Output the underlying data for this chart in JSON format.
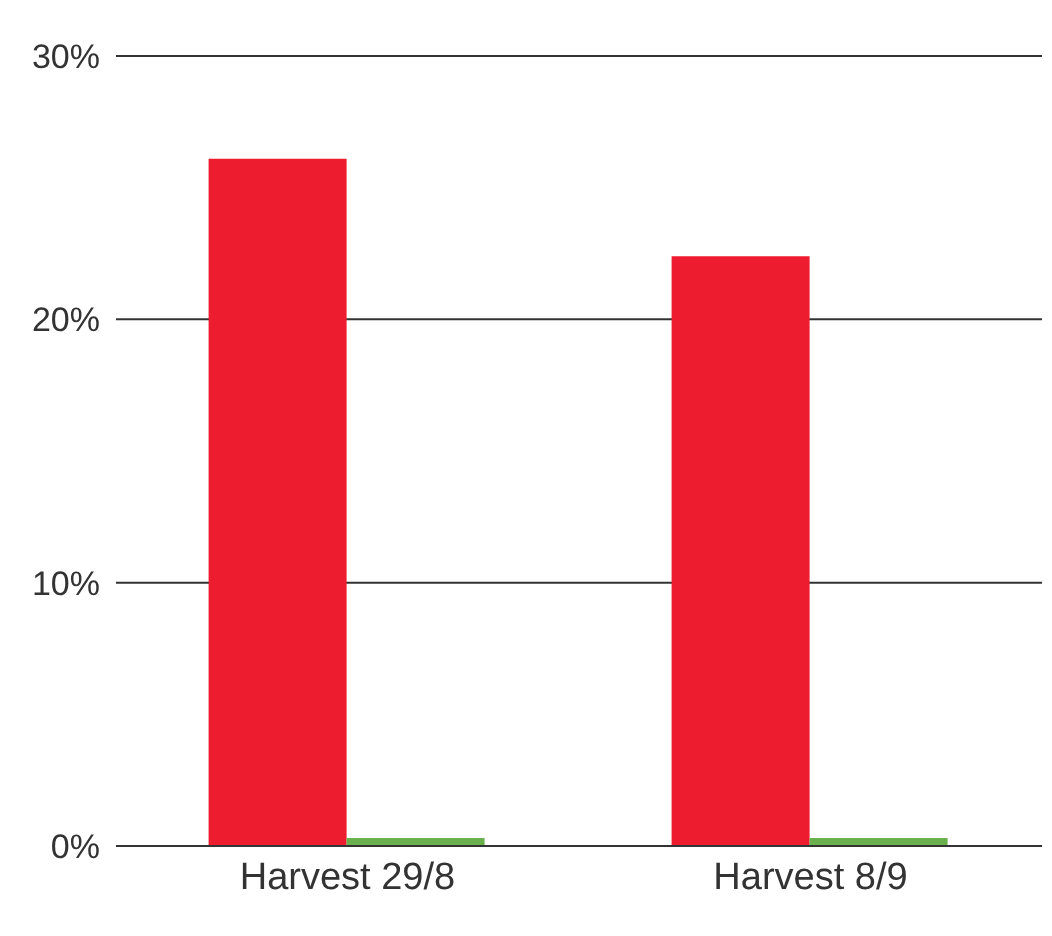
{
  "chart_data": {
    "type": "bar",
    "categories": [
      "Harvest 29/8",
      "Harvest 8/9"
    ],
    "series": [
      {
        "color": "#ed1c2e",
        "values": [
          26.1,
          22.4
        ]
      },
      {
        "color": "#6ab04c",
        "values": [
          0.3,
          0.3
        ]
      }
    ],
    "ylim": [
      0,
      30
    ],
    "yticks": [
      {
        "value": 0,
        "label": "0%"
      },
      {
        "value": 10,
        "label": "10%"
      },
      {
        "value": 20,
        "label": "20%"
      },
      {
        "value": 30,
        "label": "30%"
      }
    ],
    "grid": "y"
  }
}
